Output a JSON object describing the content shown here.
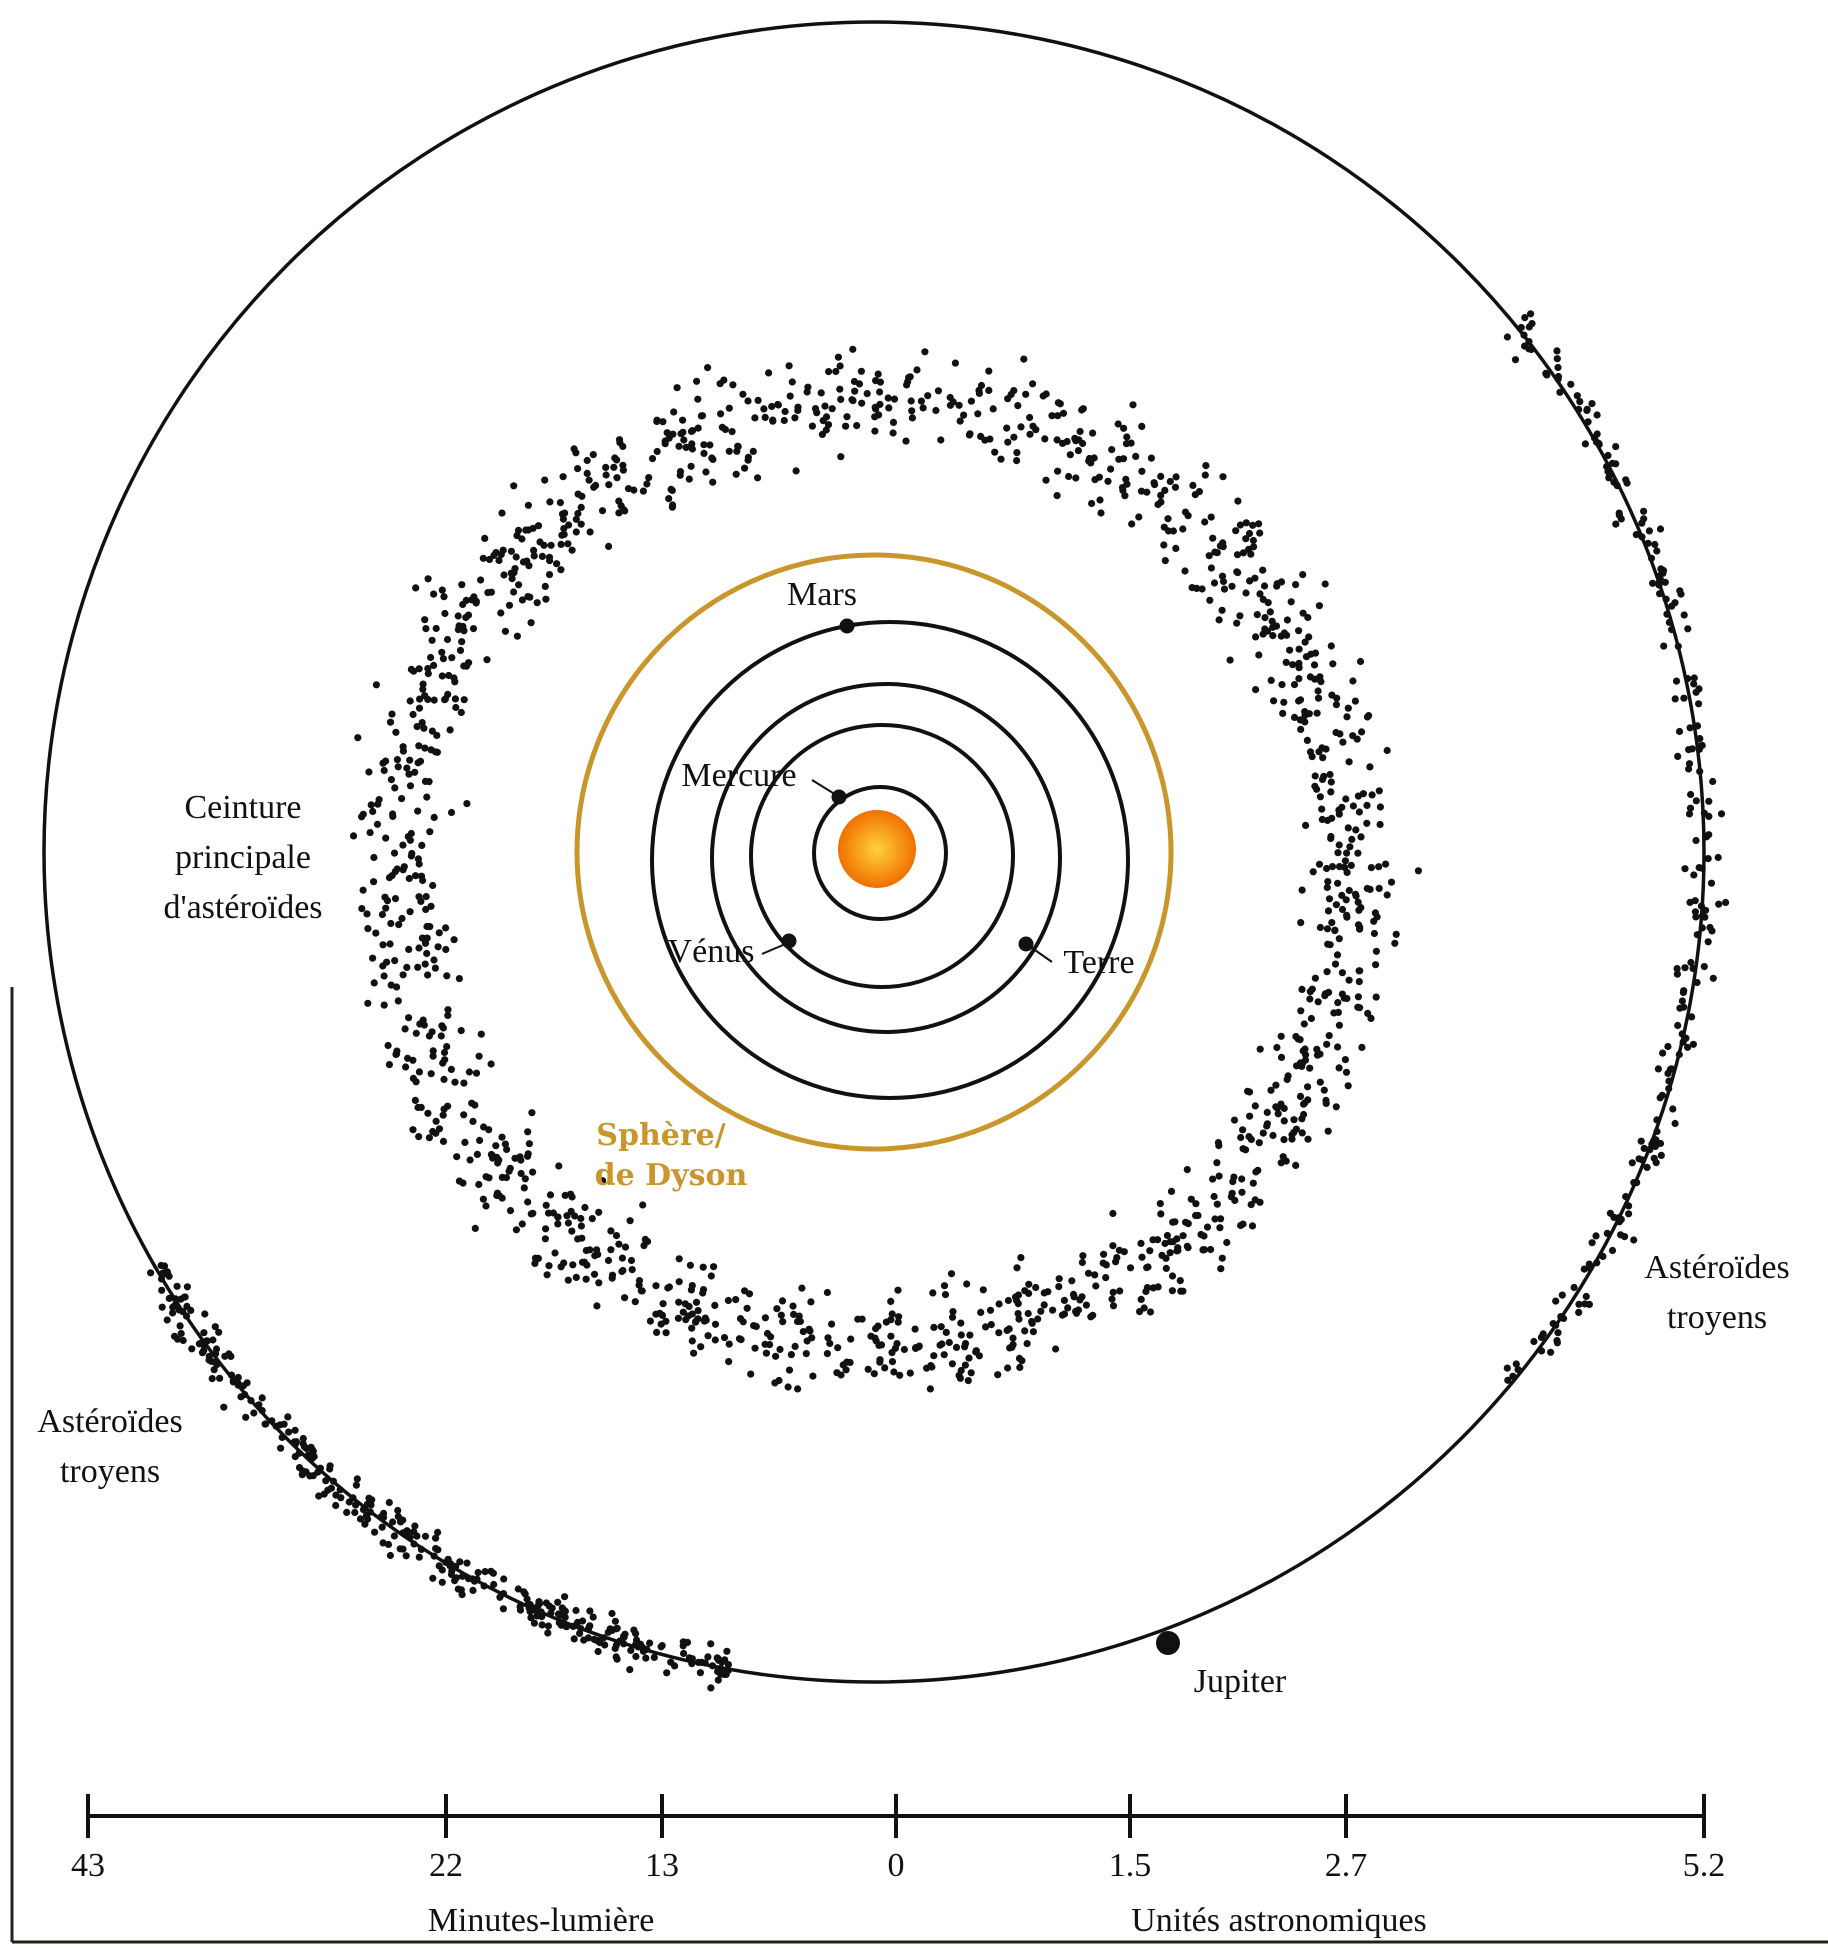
{
  "colors": {
    "dyson": "#c9962c",
    "sun_center": "#ffd23a",
    "sun_edge": "#f07000",
    "ink": "#111111",
    "frame": "#2a1f14"
  },
  "sun": {
    "name": "sun"
  },
  "dyson_sphere": {
    "label_line1": "Sphère/",
    "label_line2": "de Dyson"
  },
  "planets": {
    "mercure": "Mercure",
    "venus": "Vénus",
    "terre": "Terre",
    "mars": "Mars",
    "jupiter": "Jupiter"
  },
  "belt": {
    "label_line1": "Ceinture",
    "label_line2": "principale",
    "label_line3": "d'astéroïdes"
  },
  "trojans_left": {
    "label_line1": "Astéroïdes",
    "label_line2": "troyens"
  },
  "trojans_right": {
    "label_line1": "Astéroïdes",
    "label_line2": "troyens"
  },
  "scale": {
    "ticks": [
      "43",
      "22",
      "13",
      "0",
      "1.5",
      "2.7",
      "5.2"
    ],
    "left_unit": "Minutes-lumière",
    "right_unit": "Unités astronomiques"
  }
}
